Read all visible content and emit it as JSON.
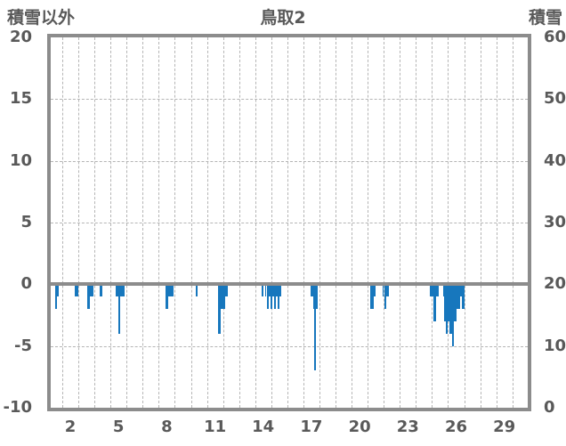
{
  "header": {
    "left_axis_title": "積雪以外",
    "title": "鳥取2",
    "right_axis_title": "積雪"
  },
  "colors": {
    "bar": "#1777bd",
    "frame": "#8c8c8c",
    "gridline": "#b5b5b5",
    "zero_line": "#8c8c8c",
    "text": "#595959",
    "background": "#ffffff"
  },
  "chart_data": {
    "type": "bar",
    "title": "鳥取2",
    "left_axis": {
      "title": "積雪以外",
      "ticks": [
        20,
        15,
        10,
        5,
        0,
        -5,
        -10
      ],
      "min": -10,
      "max": 20
    },
    "right_axis": {
      "title": "積雪",
      "ticks": [
        60,
        50,
        40,
        30,
        20,
        10,
        0
      ],
      "min": 0,
      "max": 60
    },
    "x_axis": {
      "tick_labels": [
        "2",
        "5",
        "8",
        "11",
        "14",
        "17",
        "20",
        "23",
        "26",
        "29"
      ],
      "tick_days": [
        2,
        5,
        8,
        11,
        14,
        17,
        20,
        23,
        26,
        29
      ],
      "days_in_month": 30,
      "axis_range": [
        0.78,
        30.46
      ]
    },
    "grid": {
      "h_dashed_left_values": [
        15,
        10,
        5,
        -5
      ],
      "v_dashed_day_boundaries_from": 1.5,
      "v_dashed_day_boundaries_to": 29.5,
      "zero_line_left_value": 0
    },
    "bars_format": "[day_start, day_end, value_left_axis]",
    "bars": [
      [
        1.06,
        1.19,
        -2
      ],
      [
        1.19,
        1.3,
        -1
      ],
      [
        2.27,
        2.49,
        -1
      ],
      [
        3.07,
        3.2,
        -2
      ],
      [
        3.2,
        3.44,
        -1
      ],
      [
        3.83,
        3.99,
        -1
      ],
      [
        4.82,
        5.0,
        -1
      ],
      [
        5.0,
        5.11,
        -4
      ],
      [
        5.11,
        5.37,
        -1
      ],
      [
        7.92,
        8.09,
        -2
      ],
      [
        8.09,
        8.42,
        -1
      ],
      [
        9.82,
        9.93,
        -1
      ],
      [
        11.19,
        11.34,
        -4
      ],
      [
        11.34,
        11.63,
        -2
      ],
      [
        11.63,
        11.8,
        -1
      ],
      [
        13.9,
        14.03,
        -1
      ],
      [
        14.12,
        14.21,
        -1
      ],
      [
        14.21,
        14.35,
        -2
      ],
      [
        14.35,
        14.46,
        -1
      ],
      [
        14.46,
        14.58,
        -2
      ],
      [
        14.58,
        14.68,
        -1
      ],
      [
        14.68,
        14.8,
        -2
      ],
      [
        14.8,
        14.9,
        -1
      ],
      [
        14.9,
        15.03,
        -2
      ],
      [
        15.03,
        15.14,
        -1
      ],
      [
        16.97,
        17.11,
        -1
      ],
      [
        17.11,
        17.15,
        -2
      ],
      [
        17.15,
        17.3,
        -7
      ],
      [
        17.3,
        17.41,
        -2
      ],
      [
        20.64,
        20.89,
        -2
      ],
      [
        20.89,
        20.99,
        -1
      ],
      [
        21.43,
        21.52,
        -1
      ],
      [
        21.52,
        21.67,
        -2
      ],
      [
        21.67,
        21.8,
        -1
      ],
      [
        24.38,
        24.57,
        -1
      ],
      [
        24.57,
        24.75,
        -3
      ],
      [
        24.75,
        24.93,
        -1
      ],
      [
        25.18,
        25.27,
        -1
      ],
      [
        25.27,
        25.36,
        -3
      ],
      [
        25.36,
        25.47,
        -4
      ],
      [
        25.47,
        25.6,
        -3
      ],
      [
        25.6,
        25.75,
        -4
      ],
      [
        25.75,
        25.86,
        -5
      ],
      [
        25.86,
        26.01,
        -3
      ],
      [
        26.01,
        26.23,
        -2
      ],
      [
        26.23,
        26.37,
        -1
      ],
      [
        26.37,
        26.51,
        -2
      ]
    ]
  }
}
